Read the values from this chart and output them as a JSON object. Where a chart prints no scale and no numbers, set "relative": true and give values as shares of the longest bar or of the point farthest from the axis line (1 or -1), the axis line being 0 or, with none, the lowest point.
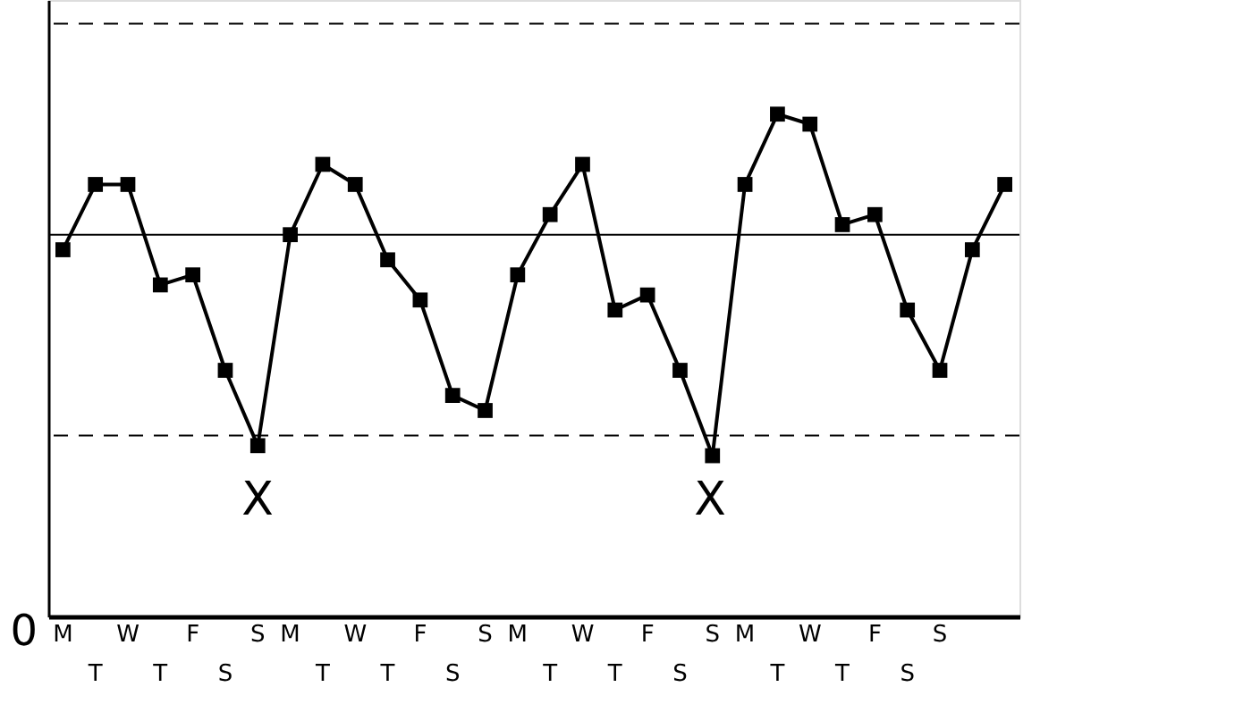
{
  "chart_data": {
    "type": "line",
    "relative": true,
    "marker": "square",
    "line_style": "solid",
    "grid": false,
    "categories": [
      "M",
      "T",
      "W",
      "T",
      "F",
      "S",
      "S",
      "M",
      "T",
      "W",
      "T",
      "F",
      "S",
      "S",
      "M",
      "T",
      "W",
      "T",
      "F",
      "S",
      "S",
      "M",
      "T",
      "W",
      "T",
      "F",
      "S",
      "S",
      null,
      null
    ],
    "series": [
      {
        "color": "#000000",
        "values": [
          0.73,
          0.86,
          0.86,
          0.66,
          0.68,
          0.49,
          0.34,
          0.76,
          0.9,
          0.86,
          0.71,
          0.63,
          0.44,
          0.41,
          0.68,
          0.8,
          0.9,
          0.61,
          0.64,
          0.49,
          0.32,
          0.86,
          1.0,
          0.98,
          0.78,
          0.8,
          0.61,
          0.49,
          0.73,
          0.86
        ]
      }
    ],
    "ref_lines": [
      {
        "axis": "y",
        "value": 0.76,
        "color": "#000000",
        "line_style": "solid"
      },
      {
        "axis": "y",
        "value": 0.36,
        "color": "#000000",
        "line_style": "dashed"
      },
      {
        "axis": "y",
        "value": 1.18,
        "color": "#000000",
        "line_style": "dashed"
      }
    ],
    "annotations": [
      "0",
      "X",
      "X"
    ]
  }
}
